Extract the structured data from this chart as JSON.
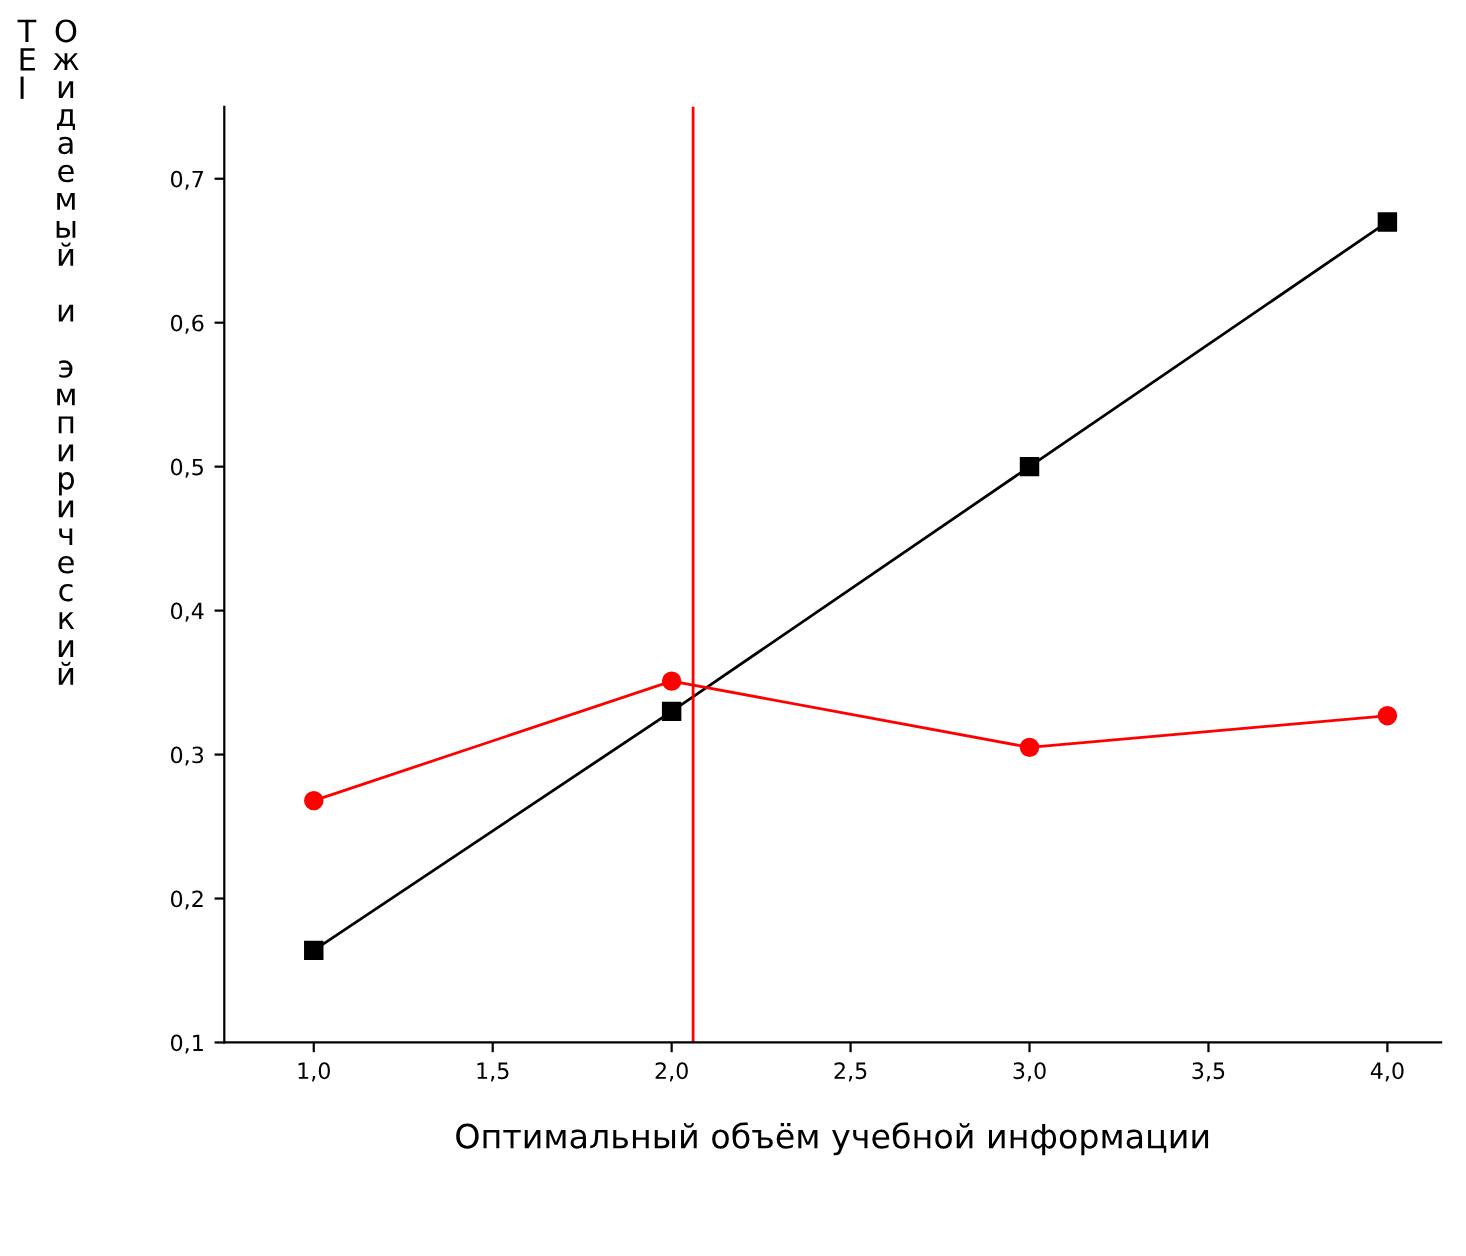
{
  "chart_data": {
    "type": "line",
    "xlabel": "Оптимальный объём учебной информации",
    "ylabel": "ТЕI Ожидаемый и эмпирический",
    "x": [
      1,
      2,
      3,
      4
    ],
    "series": [
      {
        "color": "#000000",
        "values": [
          0.164,
          0.33,
          0.5,
          0.67
        ],
        "marker": "square"
      },
      {
        "color": "#ff0000",
        "values": [
          0.268,
          0.351,
          0.305,
          0.327
        ],
        "marker": "circle"
      }
    ],
    "xlim": [
      0.75,
      4.15
    ],
    "ylim": [
      0.1,
      0.75
    ],
    "xticks": [
      {
        "value": 1,
        "label": "1,0"
      },
      {
        "value": 1.5,
        "label": "1,5"
      },
      {
        "value": 2,
        "label": "2,0"
      },
      {
        "value": 2.5,
        "label": "2,5"
      },
      {
        "value": 3,
        "label": "3,0"
      },
      {
        "value": 3.5,
        "label": "3,5"
      },
      {
        "value": 4,
        "label": "4,0"
      }
    ],
    "yticks": [
      {
        "value": 0.1,
        "label": "0,1"
      },
      {
        "value": 0.2,
        "label": "0,2"
      },
      {
        "value": 0.3,
        "label": "0,3"
      },
      {
        "value": 0.4,
        "label": "0,4"
      },
      {
        "value": 0.5,
        "label": "0,5"
      },
      {
        "value": 0.6,
        "label": "0,6"
      },
      {
        "value": 0.7,
        "label": "0,7"
      }
    ],
    "ref_lines": [
      {
        "axis": "x",
        "value": 2.06,
        "color": "#ff0000"
      }
    ],
    "grid": false,
    "legend": false
  }
}
